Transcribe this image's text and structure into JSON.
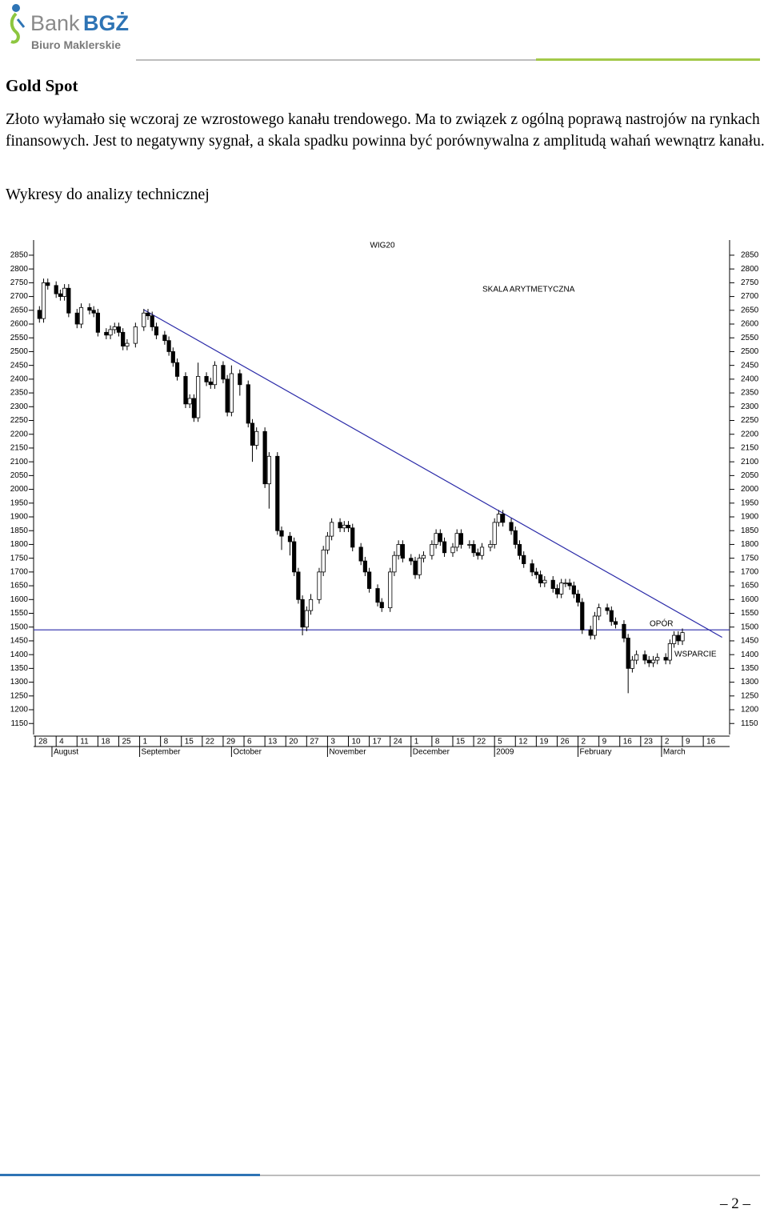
{
  "header": {
    "brand": "Bank",
    "brand_bold": "BGŻ",
    "unit": "Biuro Maklerskie"
  },
  "document": {
    "heading": "Gold Spot",
    "paragraph": "Złoto wyłamało się wczoraj ze wzrostowego kanału trendowego. Ma to związek z ogólną poprawą nastrojów na rynkach finansowych. Jest to negatywny sygnał, a skala spadku powinna być porównywalna z amplitudą wahań wewnątrz kanału.",
    "subheading": "Wykresy do analizy technicznej",
    "footer": "– 2 –"
  },
  "chart_data": {
    "type": "candlestick",
    "title": "WIG20",
    "annotations": [
      "SKALA ARYTMETYCZNA",
      "OPÓR",
      "WSPARCIE"
    ],
    "xlim": [
      -0.4,
      166.3
    ],
    "ylim": [
      1110,
      2905
    ],
    "yticks": [
      1150,
      1200,
      1250,
      1300,
      1350,
      1400,
      1450,
      1500,
      1550,
      1600,
      1650,
      1700,
      1750,
      1800,
      1850,
      1900,
      1950,
      2000,
      2050,
      2100,
      2150,
      2200,
      2250,
      2300,
      2350,
      2400,
      2450,
      2500,
      2550,
      2600,
      2650,
      2700,
      2750,
      2800,
      2850
    ],
    "xticks": [
      {
        "value": 0,
        "label": "28"
      },
      {
        "value": 5,
        "label": "4"
      },
      {
        "value": 10,
        "label": "11"
      },
      {
        "value": 15,
        "label": "18"
      },
      {
        "value": 20,
        "label": "25"
      },
      {
        "value": 25,
        "label": "1"
      },
      {
        "value": 30,
        "label": "8"
      },
      {
        "value": 35,
        "label": "15"
      },
      {
        "value": 40,
        "label": "22"
      },
      {
        "value": 45,
        "label": "29"
      },
      {
        "value": 50,
        "label": "6"
      },
      {
        "value": 55,
        "label": "13"
      },
      {
        "value": 60,
        "label": "20"
      },
      {
        "value": 65,
        "label": "27"
      },
      {
        "value": 70,
        "label": "3"
      },
      {
        "value": 75,
        "label": "10"
      },
      {
        "value": 80,
        "label": "17"
      },
      {
        "value": 85,
        "label": "24"
      },
      {
        "value": 90,
        "label": "1"
      },
      {
        "value": 95,
        "label": "8"
      },
      {
        "value": 100,
        "label": "15"
      },
      {
        "value": 105,
        "label": "22"
      },
      {
        "value": 110,
        "label": "5"
      },
      {
        "value": 115,
        "label": "12"
      },
      {
        "value": 120,
        "label": "19"
      },
      {
        "value": 125,
        "label": "26"
      },
      {
        "value": 130,
        "label": "2"
      },
      {
        "value": 135,
        "label": "9"
      },
      {
        "value": 140,
        "label": "16"
      },
      {
        "value": 145,
        "label": "23"
      },
      {
        "value": 150,
        "label": "2"
      },
      {
        "value": 155,
        "label": "9"
      },
      {
        "value": 160,
        "label": "16"
      }
    ],
    "xmonths": [
      {
        "value": 4,
        "label": "August"
      },
      {
        "value": 25,
        "label": "September"
      },
      {
        "value": 47,
        "label": "October"
      },
      {
        "value": 70,
        "label": "November"
      },
      {
        "value": 90,
        "label": "December"
      },
      {
        "value": 110,
        "label": "2009"
      },
      {
        "value": 130,
        "label": "February"
      },
      {
        "value": 150,
        "label": "March"
      }
    ],
    "line_color": "#2a2aa8",
    "trendline": {
      "x": [
        26,
        164.5
      ],
      "y": [
        2652,
        1463
      ]
    },
    "support": 1490,
    "candles": [
      [
        1,
        2650,
        2665,
        2605,
        2620
      ],
      [
        2,
        2620,
        2765,
        2605,
        2750
      ],
      [
        3,
        2750,
        2765,
        2725,
        2740
      ],
      [
        5,
        2740,
        2755,
        2695,
        2710
      ],
      [
        6,
        2710,
        2725,
        2685,
        2700
      ],
      [
        7,
        2700,
        2745,
        2685,
        2730
      ],
      [
        8,
        2730,
        2745,
        2625,
        2640
      ],
      [
        10,
        2640,
        2655,
        2585,
        2600
      ],
      [
        11,
        2600,
        2675,
        2585,
        2660
      ],
      [
        13,
        2660,
        2675,
        2635,
        2650
      ],
      [
        14,
        2650,
        2665,
        2625,
        2640
      ],
      [
        15,
        2640,
        2655,
        2555,
        2570
      ],
      [
        17,
        2570,
        2585,
        2545,
        2560
      ],
      [
        18,
        2560,
        2595,
        2545,
        2580
      ],
      [
        19,
        2580,
        2605,
        2565,
        2590
      ],
      [
        20,
        2590,
        2605,
        2555,
        2570
      ],
      [
        21,
        2570,
        2585,
        2505,
        2520
      ],
      [
        22,
        2520,
        2545,
        2505,
        2530
      ],
      [
        24,
        2530,
        2605,
        2515,
        2590
      ],
      [
        26,
        2590,
        2655,
        2575,
        2640
      ],
      [
        27,
        2640,
        2655,
        2615,
        2630
      ],
      [
        28,
        2630,
        2645,
        2575,
        2590
      ],
      [
        29,
        2590,
        2605,
        2545,
        2560
      ],
      [
        31,
        2560,
        2575,
        2525,
        2540
      ],
      [
        32,
        2540,
        2555,
        2485,
        2500
      ],
      [
        33,
        2500,
        2515,
        2445,
        2460
      ],
      [
        34,
        2460,
        2475,
        2395,
        2410
      ],
      [
        36,
        2410,
        2425,
        2295,
        2310
      ],
      [
        37,
        2310,
        2345,
        2295,
        2330
      ],
      [
        38,
        2330,
        2345,
        2245,
        2260
      ],
      [
        39,
        2260,
        2460,
        2245,
        2410
      ],
      [
        41,
        2410,
        2425,
        2375,
        2390
      ],
      [
        42,
        2390,
        2405,
        2365,
        2380
      ],
      [
        43,
        2380,
        2465,
        2365,
        2450
      ],
      [
        45,
        2450,
        2465,
        2385,
        2400
      ],
      [
        46,
        2400,
        2415,
        2265,
        2280
      ],
      [
        47,
        2280,
        2450,
        2265,
        2420
      ],
      [
        49,
        2420,
        2435,
        2340,
        2380
      ],
      [
        51,
        2380,
        2395,
        2225,
        2240
      ],
      [
        52,
        2240,
        2255,
        2100,
        2160
      ],
      [
        53,
        2160,
        2225,
        2145,
        2210
      ],
      [
        55,
        2210,
        2225,
        2005,
        2020
      ],
      [
        56,
        2020,
        2135,
        1930,
        2120
      ],
      [
        58,
        2120,
        2135,
        1835,
        1850
      ],
      [
        59,
        1850,
        1865,
        1780,
        1830
      ],
      [
        61,
        1830,
        1845,
        1760,
        1810
      ],
      [
        62,
        1810,
        1825,
        1685,
        1700
      ],
      [
        63,
        1700,
        1715,
        1585,
        1600
      ],
      [
        64,
        1600,
        1615,
        1470,
        1500
      ],
      [
        65,
        1500,
        1575,
        1485,
        1560
      ],
      [
        66,
        1560,
        1620,
        1545,
        1600
      ],
      [
        68,
        1600,
        1715,
        1585,
        1700
      ],
      [
        69,
        1700,
        1795,
        1685,
        1780
      ],
      [
        70,
        1780,
        1845,
        1765,
        1830
      ],
      [
        71,
        1830,
        1895,
        1815,
        1880
      ],
      [
        73,
        1880,
        1895,
        1845,
        1860
      ],
      [
        74,
        1860,
        1885,
        1845,
        1870
      ],
      [
        75,
        1870,
        1885,
        1845,
        1860
      ],
      [
        76,
        1860,
        1875,
        1775,
        1790
      ],
      [
        78,
        1790,
        1805,
        1725,
        1740
      ],
      [
        79,
        1740,
        1755,
        1685,
        1700
      ],
      [
        80,
        1700,
        1715,
        1625,
        1640
      ],
      [
        82,
        1640,
        1655,
        1575,
        1590
      ],
      [
        83,
        1590,
        1605,
        1555,
        1570
      ],
      [
        85,
        1570,
        1715,
        1555,
        1700
      ],
      [
        86,
        1700,
        1775,
        1685,
        1760
      ],
      [
        87,
        1760,
        1815,
        1745,
        1800
      ],
      [
        88,
        1800,
        1815,
        1735,
        1750
      ],
      [
        90,
        1750,
        1765,
        1725,
        1740
      ],
      [
        91,
        1740,
        1755,
        1675,
        1690
      ],
      [
        92,
        1690,
        1765,
        1675,
        1750
      ],
      [
        93,
        1750,
        1775,
        1735,
        1760
      ],
      [
        95,
        1760,
        1815,
        1745,
        1800
      ],
      [
        96,
        1800,
        1855,
        1785,
        1840
      ],
      [
        97,
        1840,
        1855,
        1795,
        1810
      ],
      [
        98,
        1810,
        1825,
        1755,
        1770
      ],
      [
        100,
        1770,
        1805,
        1755,
        1790
      ],
      [
        101,
        1790,
        1855,
        1775,
        1840
      ],
      [
        102,
        1840,
        1855,
        1785,
        1800
      ],
      [
        104,
        1800,
        1815,
        1785,
        1800
      ],
      [
        105,
        1800,
        1815,
        1755,
        1770
      ],
      [
        106,
        1770,
        1785,
        1745,
        1760
      ],
      [
        107,
        1760,
        1805,
        1745,
        1790
      ],
      [
        109,
        1790,
        1815,
        1775,
        1800
      ],
      [
        110,
        1800,
        1895,
        1785,
        1880
      ],
      [
        111,
        1880,
        1925,
        1865,
        1910
      ],
      [
        112,
        1910,
        1925,
        1865,
        1880
      ],
      [
        114,
        1880,
        1895,
        1835,
        1850
      ],
      [
        115,
        1850,
        1865,
        1785,
        1800
      ],
      [
        116,
        1800,
        1815,
        1745,
        1760
      ],
      [
        117,
        1760,
        1775,
        1715,
        1730
      ],
      [
        119,
        1730,
        1745,
        1685,
        1700
      ],
      [
        120,
        1700,
        1715,
        1675,
        1690
      ],
      [
        121,
        1690,
        1705,
        1645,
        1660
      ],
      [
        122,
        1660,
        1685,
        1645,
        1670
      ],
      [
        124,
        1670,
        1685,
        1625,
        1640
      ],
      [
        125,
        1640,
        1655,
        1605,
        1620
      ],
      [
        126,
        1620,
        1675,
        1605,
        1660
      ],
      [
        127,
        1660,
        1675,
        1645,
        1660
      ],
      [
        128,
        1660,
        1675,
        1635,
        1650
      ],
      [
        129,
        1650,
        1665,
        1605,
        1620
      ],
      [
        130,
        1620,
        1635,
        1575,
        1590
      ],
      [
        131,
        1590,
        1605,
        1475,
        1490
      ],
      [
        133,
        1490,
        1505,
        1455,
        1470
      ],
      [
        134,
        1470,
        1555,
        1455,
        1540
      ],
      [
        135,
        1540,
        1585,
        1525,
        1570
      ],
      [
        137,
        1570,
        1585,
        1545,
        1560
      ],
      [
        138,
        1560,
        1575,
        1505,
        1520
      ],
      [
        139,
        1520,
        1535,
        1495,
        1510
      ],
      [
        141,
        1510,
        1525,
        1445,
        1460
      ],
      [
        142,
        1460,
        1475,
        1260,
        1350
      ],
      [
        143,
        1350,
        1395,
        1335,
        1380
      ],
      [
        144,
        1380,
        1415,
        1365,
        1400
      ],
      [
        146,
        1400,
        1415,
        1365,
        1380
      ],
      [
        147,
        1380,
        1395,
        1355,
        1370
      ],
      [
        148,
        1370,
        1395,
        1355,
        1380
      ],
      [
        149,
        1380,
        1405,
        1365,
        1390
      ],
      [
        151,
        1390,
        1405,
        1365,
        1380
      ],
      [
        152,
        1380,
        1455,
        1365,
        1440
      ],
      [
        153,
        1440,
        1485,
        1425,
        1470
      ],
      [
        154,
        1470,
        1485,
        1435,
        1450
      ],
      [
        155,
        1450,
        1495,
        1435,
        1480
      ]
    ]
  }
}
